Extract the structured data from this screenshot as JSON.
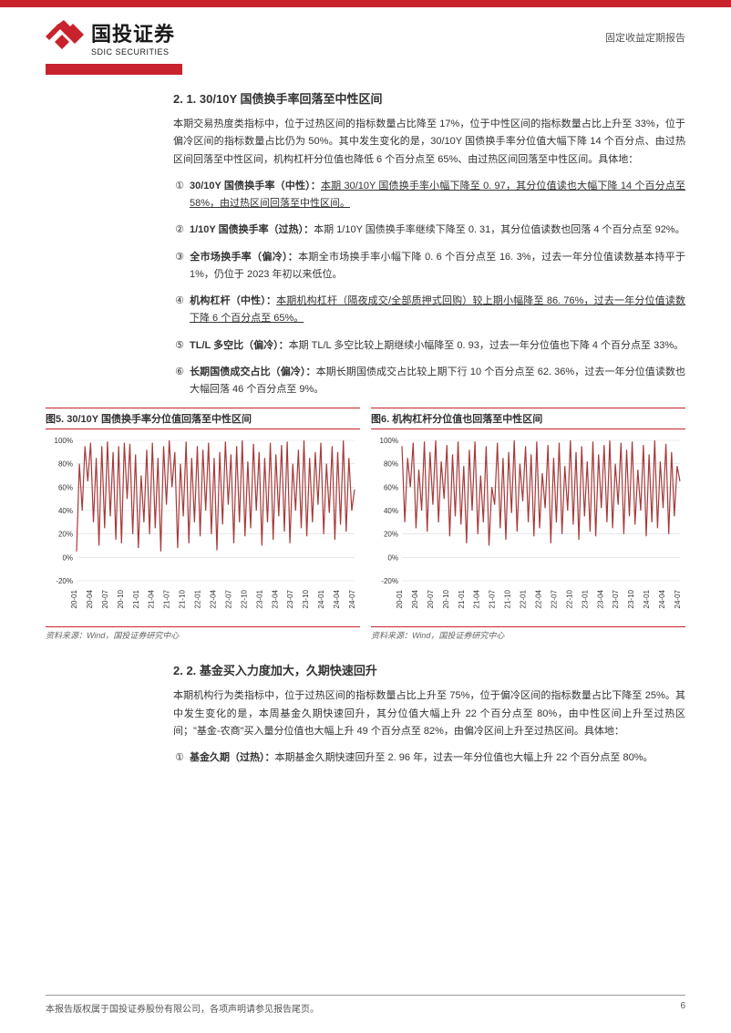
{
  "header": {
    "company_cn": "国投证券",
    "company_en": "SDIC SECURITIES",
    "doc_type": "固定收益定期报告",
    "logo_color": "#c8232c"
  },
  "section21": {
    "heading": "2. 1. 30/10Y 国债换手率回落至中性区间",
    "intro": "本期交易热度类指标中，位于过热区间的指标数量占比降至 17%，位于中性区间的指标数量占比上升至 33%，位于偏冷区间的指标数量占比仍为 50%。其中发生变化的是，30/10Y 国债换手率分位值大幅下降 14 个百分点、由过热区间回落至中性区间，机构杠杆分位值也降低 6 个百分点至 65%、由过热区间回落至中性区间。具体地：",
    "items": [
      {
        "n": "①",
        "label": "30/10Y 国债换手率（中性）：",
        "body_u": "本期 30/10Y 国债换手率小幅下降至 0. 97，其分位值读也大幅下降 14 个百分点至 58%，由过热区间回落至中性区间。",
        "body": ""
      },
      {
        "n": "②",
        "label": "1/10Y 国债换手率（过热）：",
        "body_u": "",
        "body": "本期 1/10Y 国债换手率继续下降至 0. 31，其分位值读数也回落 4 个百分点至 92%。"
      },
      {
        "n": "③",
        "label": "全市场换手率（偏冷）：",
        "body_u": "",
        "body": "本期全市场换手率小幅下降 0. 6 个百分点至 16. 3%，过去一年分位值读数基本持平于 1%，仍位于 2023 年初以来低位。"
      },
      {
        "n": "④",
        "label": "机构杠杆（中性）：",
        "body_u": "本期机构杠杆（隔夜成交/全部质押式回购）较上期小幅降至 86. 76%，过去一年分位值读数下降 6 个百分点至 65%。",
        "body": ""
      },
      {
        "n": "⑤",
        "label": "TL/L 多空比（偏冷）：",
        "body_u": "",
        "body": "本期 TL/L 多空比较上期继续小幅降至 0. 93，过去一年分位值也下降 4 个百分点至 33%。"
      },
      {
        "n": "⑥",
        "label": "长期国债成交占比（偏冷）：",
        "body_u": "",
        "body": "本期长期国债成交占比较上期下行 10 个百分点至 62. 36%，过去一年分位值读数也大幅回落 46 个百分点至 9%。"
      }
    ]
  },
  "chart5": {
    "title": "图5. 30/10Y 国债换手率分位值回落至中性区间",
    "type": "line",
    "source": "资料来源：Wind，国投证券研究中心",
    "ylim": [
      -20,
      100
    ],
    "ytick_step": 20,
    "ylabels": [
      "-20%",
      "0%",
      "20%",
      "40%",
      "60%",
      "80%",
      "100%"
    ],
    "xlabels": [
      "20-01",
      "20-04",
      "20-07",
      "20-10",
      "21-01",
      "21-04",
      "21-07",
      "21-10",
      "22-01",
      "22-04",
      "22-07",
      "22-10",
      "23-01",
      "23-04",
      "23-07",
      "23-10",
      "24-01",
      "24-04",
      "24-07"
    ],
    "line_color": "#a63a3a",
    "line_width": 1.2,
    "grid_color": "#d9d9d9",
    "background_color": "#ffffff",
    "label_fontsize": 8,
    "values": [
      5,
      80,
      40,
      95,
      65,
      98,
      30,
      85,
      10,
      95,
      25,
      99,
      35,
      90,
      15,
      95,
      12,
      98,
      50,
      97,
      20,
      88,
      8,
      70,
      30,
      92,
      20,
      98,
      25,
      85,
      5,
      95,
      45,
      100,
      60,
      90,
      8,
      80,
      35,
      99,
      12,
      85,
      30,
      95,
      18,
      92,
      40,
      98,
      20,
      85,
      6,
      90,
      28,
      99,
      45,
      88,
      12,
      95,
      30,
      100,
      18,
      82,
      25,
      97,
      40,
      90,
      10,
      85,
      30,
      98,
      15,
      88,
      35,
      96,
      22,
      99,
      12,
      80,
      40,
      92,
      25,
      100,
      18,
      85,
      30,
      90,
      45,
      98,
      20,
      80,
      38,
      95,
      15,
      90,
      28,
      100,
      22,
      85,
      40,
      58
    ]
  },
  "chart6": {
    "title": "图6. 机构杠杆分位值也回落至中性区间",
    "type": "line",
    "source": "资料来源：Wind，国投证券研究中心",
    "ylim": [
      -20,
      100
    ],
    "ytick_step": 20,
    "ylabels": [
      "-20%",
      "0%",
      "20%",
      "40%",
      "60%",
      "80%",
      "100%"
    ],
    "xlabels": [
      "20-01",
      "20-04",
      "20-07",
      "20-10",
      "21-01",
      "21-04",
      "21-07",
      "21-10",
      "22-01",
      "22-04",
      "22-07",
      "22-10",
      "23-01",
      "23-04",
      "23-07",
      "23-10",
      "24-01",
      "24-04",
      "24-07"
    ],
    "line_color": "#a63a3a",
    "line_width": 1.2,
    "grid_color": "#d9d9d9",
    "background_color": "#ffffff",
    "label_fontsize": 8,
    "values": [
      95,
      30,
      85,
      60,
      98,
      25,
      75,
      40,
      99,
      22,
      90,
      45,
      100,
      30,
      82,
      50,
      96,
      18,
      88,
      35,
      99,
      28,
      78,
      12,
      92,
      40,
      99,
      20,
      70,
      30,
      95,
      10,
      60,
      45,
      98,
      25,
      85,
      15,
      90,
      38,
      100,
      22,
      80,
      48,
      95,
      30,
      88,
      18,
      99,
      25,
      72,
      42,
      96,
      12,
      85,
      30,
      98,
      20,
      78,
      40,
      100,
      28,
      90,
      15,
      95,
      35,
      82,
      22,
      99,
      18,
      88,
      42,
      96,
      30,
      100,
      25,
      80,
      45,
      98,
      20,
      92,
      35,
      99,
      28,
      75,
      40,
      96,
      18,
      88,
      30,
      100,
      25,
      82,
      42,
      97,
      20,
      90,
      35,
      78,
      65
    ]
  },
  "section22": {
    "heading": "2. 2. 基金买入力度加大，久期快速回升",
    "intro": "本期机构行为类指标中，位于过热区间的指标数量占比上升至 75%，位于偏冷区间的指标数量占比下降至 25%。其中发生变化的是，本周基金久期快速回升，其分位值大幅上升 22 个百分点至 80%，由中性区间上升至过热区间；\"基金-农商\"买入量分位值也大幅上升 49 个百分点至 82%，由偏冷区间上升至过热区间。具体地：",
    "items": [
      {
        "n": "①",
        "label": "基金久期（过热）：",
        "body_u": "",
        "body": "本期基金久期快速回升至 2. 96 年，过去一年分位值也大幅上升 22 个百分点至 80%。"
      }
    ]
  },
  "footer": {
    "text": "本报告版权属于国投证券股份有限公司，各项声明请参见报告尾页。",
    "page": "6"
  }
}
